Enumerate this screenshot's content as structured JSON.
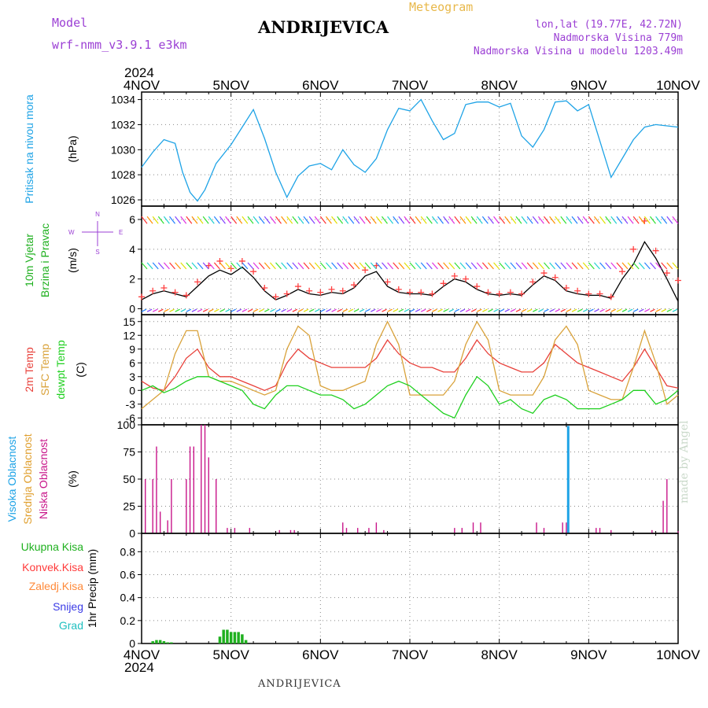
{
  "header": {
    "model_label": "Model",
    "model_name": "wrf-nmm_v3.9.1 e3km",
    "station": "ANDRIJEVICA",
    "meteogram_label": "Meteogram",
    "lonlat": "lon,lat (19.77E, 42.72N)",
    "elevation": "Nadmorska Visina 779m",
    "model_elevation": "Nadmorska Visina u modelu 1203.49m"
  },
  "footer": {
    "station": "ANDRIJEVICA",
    "watermark": "made by Angel"
  },
  "colors": {
    "pressure": "#1ea3e6",
    "temp2m": "#e8403a",
    "sfc_temp": "#d9a23a",
    "dewpoint": "#1fd01f",
    "wind_speed": "#000000",
    "gust_marker": "#ff4040",
    "cloud_low": "#c8168a",
    "cloud_mid": "#e0a030",
    "cloud_high": "#1ea3e6",
    "precip_total": "#1fb01f",
    "konvek": "#ff3a3a",
    "zaledj": "#ff8a3a",
    "snow": "#3a3ae6",
    "grad": "#20c0c0",
    "grid": "#888888"
  },
  "chart_data": [
    {
      "type": "line",
      "panel": "pressure",
      "ylabel_main": "Pritisak na nivou mora",
      "ylabel_unit": "(hPa)",
      "ylim": [
        1025.5,
        1034.6
      ],
      "yticks": [
        1026,
        1028,
        1030,
        1032,
        1034
      ],
      "x_top_year": "2024",
      "x_bottom_year": "2024",
      "x_ticks": [
        "4NOV",
        "5NOV",
        "6NOV",
        "7NOV",
        "8NOV",
        "9NOV",
        "10NOV"
      ],
      "x_unit": "hours since 4NOV 00UTC",
      "grid": true,
      "series": [
        {
          "x": [
            0,
            3,
            6,
            9,
            11,
            13,
            15,
            17,
            20,
            24,
            27,
            30,
            33,
            36,
            39,
            42,
            45,
            48,
            51,
            54,
            57,
            60,
            63,
            66,
            69,
            72,
            75,
            78,
            81,
            84,
            87,
            90,
            93,
            96,
            99,
            102,
            105,
            108,
            111,
            114,
            117,
            120,
            123,
            126,
            129,
            132,
            135,
            138,
            141,
            144
          ],
          "values": [
            1028.6,
            1029.8,
            1030.8,
            1030.5,
            1028.2,
            1026.6,
            1025.9,
            1026.8,
            1028.9,
            1030.4,
            1031.8,
            1033.2,
            1030.9,
            1028.2,
            1026.2,
            1027.9,
            1028.7,
            1028.9,
            1028.4,
            1030.0,
            1028.8,
            1028.2,
            1029.3,
            1031.6,
            1033.3,
            1033.1,
            1034.0,
            1032.3,
            1030.8,
            1031.3,
            1033.6,
            1033.8,
            1033.8,
            1033.4,
            1033.7,
            1031.1,
            1030.2,
            1031.6,
            1033.8,
            1033.9,
            1033.1,
            1033.6,
            1030.7,
            1027.8,
            1029.3,
            1030.8,
            1031.8,
            1032.0,
            1031.9,
            1031.8
          ]
        }
      ]
    },
    {
      "type": "line",
      "panel": "wind",
      "ylabel_main": "10m Vjetar",
      "ylabel_sub": "Brzina i Pravac",
      "ylabel_unit": "(m/s)",
      "compass": [
        "N",
        "W",
        "E",
        "S"
      ],
      "ylim": [
        -0.4,
        6.9
      ],
      "yticks": [
        0,
        2,
        4,
        6
      ],
      "grid": true,
      "series": [
        {
          "name": "speed",
          "x": [
            0,
            3,
            6,
            9,
            12,
            15,
            18,
            21,
            24,
            27,
            30,
            33,
            36,
            39,
            42,
            45,
            48,
            51,
            54,
            57,
            60,
            63,
            66,
            69,
            72,
            75,
            78,
            81,
            84,
            87,
            90,
            93,
            96,
            99,
            102,
            105,
            108,
            111,
            114,
            117,
            120,
            123,
            126,
            129,
            132,
            135,
            138,
            141,
            144
          ],
          "values": [
            0.6,
            1.0,
            1.2,
            1.0,
            0.8,
            1.5,
            2.2,
            2.6,
            2.3,
            2.8,
            2.1,
            1.2,
            0.6,
            0.9,
            1.3,
            1.0,
            0.9,
            1.1,
            1.0,
            1.4,
            2.2,
            2.5,
            1.5,
            1.1,
            1.0,
            1.0,
            0.9,
            1.5,
            2.0,
            1.8,
            1.3,
            1.0,
            0.9,
            1.0,
            0.9,
            1.6,
            2.2,
            1.9,
            1.2,
            1.0,
            0.9,
            0.9,
            0.7,
            2.0,
            3.0,
            4.5,
            3.4,
            2.0,
            0.5
          ]
        },
        {
          "name": "gust",
          "x": [
            0,
            3,
            6,
            9,
            12,
            15,
            18,
            21,
            24,
            27,
            30,
            33,
            36,
            39,
            42,
            45,
            48,
            51,
            54,
            57,
            60,
            63,
            66,
            69,
            72,
            75,
            78,
            81,
            84,
            87,
            90,
            93,
            96,
            99,
            102,
            105,
            108,
            111,
            114,
            117,
            120,
            123,
            126,
            129,
            132,
            135,
            138,
            141,
            144
          ],
          "values": [
            0.8,
            1.2,
            1.4,
            1.1,
            0.9,
            1.8,
            2.9,
            3.2,
            2.7,
            3.2,
            2.5,
            1.4,
            0.8,
            1.0,
            1.5,
            1.2,
            1.1,
            1.3,
            1.2,
            1.6,
            2.6,
            2.9,
            1.8,
            1.3,
            1.1,
            1.1,
            1.0,
            1.7,
            2.2,
            2.0,
            1.5,
            1.1,
            1.0,
            1.1,
            1.0,
            1.8,
            2.4,
            2.1,
            1.4,
            1.2,
            1.0,
            1.0,
            0.8,
            2.5,
            4.0,
            5.9,
            3.9,
            2.4,
            1.9
          ]
        }
      ]
    },
    {
      "type": "line",
      "panel": "temperature",
      "ylabel_main": "2m Temp",
      "ylabel_sub": "SFC Temp",
      "ylabel_sub2": "dewpt Temp",
      "ylabel_unit": "(C)",
      "ylim": [
        -7.5,
        16.5
      ],
      "yticks": [
        -6,
        -3,
        0,
        3,
        6,
        9,
        12,
        15
      ],
      "grid": true,
      "series": [
        {
          "name": "2m Temp",
          "x": [
            0,
            3,
            6,
            9,
            12,
            15,
            18,
            21,
            24,
            27,
            30,
            33,
            36,
            39,
            42,
            45,
            48,
            51,
            54,
            57,
            60,
            63,
            66,
            69,
            72,
            75,
            78,
            81,
            84,
            87,
            90,
            93,
            96,
            99,
            102,
            105,
            108,
            111,
            114,
            117,
            120,
            123,
            126,
            129,
            132,
            135,
            138,
            141,
            144
          ],
          "values": [
            2,
            0.5,
            0,
            3,
            7,
            9,
            5,
            3,
            3,
            2,
            1,
            0,
            1,
            6,
            9,
            7,
            6,
            5,
            5,
            5,
            5,
            7,
            11,
            8,
            6,
            5,
            5,
            4,
            4,
            7,
            11,
            8,
            6,
            5,
            4,
            4,
            6,
            10,
            8,
            6,
            5,
            4,
            3,
            2,
            5,
            9,
            5,
            1,
            0.5
          ]
        },
        {
          "name": "SFC Temp",
          "x": [
            0,
            3,
            6,
            9,
            12,
            15,
            18,
            21,
            24,
            27,
            30,
            33,
            36,
            39,
            42,
            45,
            48,
            51,
            54,
            57,
            60,
            63,
            66,
            69,
            72,
            75,
            78,
            81,
            84,
            87,
            90,
            93,
            96,
            99,
            102,
            105,
            108,
            111,
            114,
            117,
            120,
            123,
            126,
            129,
            132,
            135,
            138,
            141,
            144
          ],
          "values": [
            -4,
            -2,
            0,
            8,
            13,
            13,
            3,
            2,
            2,
            1,
            0,
            -1,
            0,
            9,
            14,
            12,
            1,
            0,
            0,
            1,
            2,
            10,
            15,
            10,
            -1,
            -1,
            -1,
            -1,
            2,
            10,
            15,
            11,
            0,
            -1,
            -1,
            -1,
            3,
            11,
            14,
            10,
            0,
            -1,
            -2,
            -2,
            5,
            13,
            6,
            -3,
            -1
          ]
        },
        {
          "name": "dewpt Temp",
          "x": [
            0,
            3,
            6,
            9,
            12,
            15,
            18,
            21,
            24,
            27,
            30,
            33,
            36,
            39,
            42,
            45,
            48,
            51,
            54,
            57,
            60,
            63,
            66,
            69,
            72,
            75,
            78,
            81,
            84,
            87,
            90,
            93,
            96,
            99,
            102,
            105,
            108,
            111,
            114,
            117,
            120,
            123,
            126,
            129,
            132,
            135,
            138,
            141,
            144
          ],
          "values": [
            0,
            1,
            -0.5,
            0.5,
            2,
            3,
            3,
            2,
            1,
            0,
            -3,
            -4,
            -1,
            1,
            1,
            0,
            -1,
            -1,
            -2,
            -4,
            -3,
            -1,
            1,
            2,
            1,
            -1,
            -3,
            -5,
            -6,
            -1,
            3,
            1,
            -3,
            -2,
            -4,
            -5,
            -2,
            -1,
            -2,
            -4,
            -4,
            -4,
            -3,
            -2,
            0,
            0,
            -3,
            -2,
            0
          ]
        }
      ]
    },
    {
      "type": "bar",
      "panel": "clouds",
      "ylabel_main": "Visoka Oblacnost",
      "ylabel_sub": "Srednja Oblacnost",
      "ylabel_sub2": "Niska Oblacnost",
      "ylabel_unit": "(%)",
      "ylim": [
        0,
        100
      ],
      "yticks": [
        0,
        25,
        50,
        75,
        100
      ],
      "grid": true,
      "series": [
        {
          "name": "Niska Oblacnost",
          "x": [
            1,
            3,
            4,
            5,
            7,
            8,
            12,
            13,
            14,
            16,
            17,
            18,
            20,
            23,
            25,
            29,
            37,
            40,
            41,
            54,
            55,
            58,
            61,
            63,
            65,
            84,
            86,
            89,
            91,
            106,
            108,
            113,
            114,
            122,
            123,
            126,
            137,
            140,
            141,
            144
          ],
          "values": [
            50,
            50,
            80,
            20,
            12,
            50,
            50,
            80,
            80,
            100,
            100,
            70,
            50,
            5,
            5,
            5,
            3,
            3,
            3,
            10,
            5,
            5,
            5,
            10,
            3,
            5,
            5,
            10,
            10,
            10,
            5,
            10,
            10,
            5,
            5,
            3,
            3,
            30,
            50,
            2
          ]
        },
        {
          "name": "Visoka Oblacnost",
          "x": [
            114.5
          ],
          "values": [
            99
          ]
        }
      ]
    },
    {
      "type": "bar",
      "panel": "precipitation",
      "legend": [
        "Ukupna Kisa",
        "Konvek.Kisa",
        "Zaledj.Kisa",
        "Snijeg",
        "Grad"
      ],
      "ylabel_unit": "1hr Precip (mm)",
      "ylim": [
        0,
        0.96
      ],
      "yticks": [
        0,
        0.2,
        0.4,
        0.6,
        0.8
      ],
      "grid": true,
      "series": [
        {
          "name": "Ukupna Kisa",
          "x": [
            3,
            4,
            5,
            6,
            7,
            8,
            21,
            22,
            23,
            24,
            25,
            26,
            27,
            28
          ],
          "values": [
            0.02,
            0.03,
            0.03,
            0.02,
            0.01,
            0.01,
            0.06,
            0.12,
            0.12,
            0.1,
            0.1,
            0.1,
            0.08,
            0.03
          ]
        }
      ]
    }
  ]
}
